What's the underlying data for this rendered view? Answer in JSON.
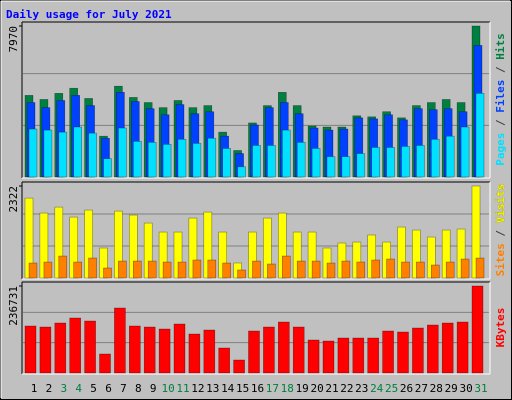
{
  "chart_data": [
    {
      "type": "bar",
      "title": "Daily usage for July 2021",
      "categories": [
        "1",
        "2",
        "3",
        "4",
        "5",
        "6",
        "7",
        "8",
        "9",
        "10",
        "11",
        "12",
        "13",
        "14",
        "15",
        "16",
        "17",
        "18",
        "19",
        "20",
        "21",
        "22",
        "23",
        "24",
        "25",
        "26",
        "27",
        "28",
        "29",
        "30",
        "31"
      ],
      "label_color": "#000000",
      "weekend_label_color": "#008040",
      "weekend_indices": [
        2,
        3,
        9,
        10,
        16,
        17,
        23,
        24,
        30
      ],
      "ylim": [
        0,
        7970
      ],
      "yticks": [
        7970
      ],
      "legend_separator": " / ",
      "series": [
        {
          "name": "Hits",
          "color": "#008040",
          "values": [
            4308,
            4093,
            4416,
            4685,
            4146,
            2154,
            4793,
            4200,
            3931,
            3662,
            4039,
            3662,
            3770,
            2369,
            1400,
            2854,
            3770,
            4470,
            3770,
            2693,
            2639,
            2639,
            3231,
            3177,
            3446,
            3123,
            3770,
            3931,
            4093,
            3931,
            7970
          ]
        },
        {
          "name": "Files",
          "color": "#0040ff",
          "values": [
            3931,
            3662,
            4039,
            4308,
            3770,
            2046,
            4470,
            3985,
            3608,
            3285,
            3823,
            3339,
            3446,
            2154,
            1239,
            2746,
            3662,
            3931,
            3339,
            2585,
            2477,
            2531,
            3123,
            3069,
            3285,
            3016,
            3608,
            3554,
            3608,
            3446,
            6947
          ]
        },
        {
          "name": "Pages",
          "color": "#00e0ff",
          "values": [
            2531,
            2477,
            2369,
            2639,
            2316,
            969,
            2585,
            1885,
            1831,
            1723,
            1992,
            1777,
            2046,
            1508,
            539,
            1669,
            1669,
            2477,
            1831,
            1508,
            1077,
            1077,
            1239,
            1562,
            1562,
            1615,
            1669,
            1992,
            2154,
            2639,
            4416
          ]
        }
      ]
    },
    {
      "type": "bar",
      "ylim": [
        0,
        2322
      ],
      "yticks": [
        2322
      ],
      "legend_separator": " / ",
      "series": [
        {
          "name": "Visits",
          "color": "#ffff00",
          "values": [
            2016,
            1638,
            1789,
            1537,
            1714,
            756,
            1688,
            1588,
            1386,
            1159,
            1159,
            1512,
            1663,
            1159,
            378,
            1159,
            1512,
            1638,
            1159,
            1159,
            756,
            882,
            907,
            1084,
            907,
            1285,
            1210,
            1033,
            1210,
            1235,
            2322
          ]
        },
        {
          "name": "Sites",
          "color": "#ff8000",
          "values": [
            378,
            403,
            554,
            403,
            504,
            252,
            428,
            428,
            428,
            403,
            403,
            454,
            454,
            378,
            202,
            428,
            353,
            554,
            428,
            428,
            378,
            428,
            403,
            454,
            479,
            403,
            403,
            328,
            403,
            479,
            504
          ]
        }
      ]
    },
    {
      "type": "bar",
      "ylim": [
        0,
        236731
      ],
      "yticks": [
        236731
      ],
      "series": [
        {
          "name": "KBytes",
          "color": "#ff0000",
          "values": [
            127887,
            125166,
            136050,
            149655,
            141492,
            51699,
            176865,
            127887,
            125166,
            119724,
            133329,
            106119,
            117003,
            68025,
            35373,
            114282,
            125166,
            138771,
            125166,
            89793,
            87072,
            95235,
            95235,
            95235,
            114282,
            111561,
            122445,
            130608,
            136050,
            138771,
            236731
          ]
        }
      ]
    }
  ]
}
